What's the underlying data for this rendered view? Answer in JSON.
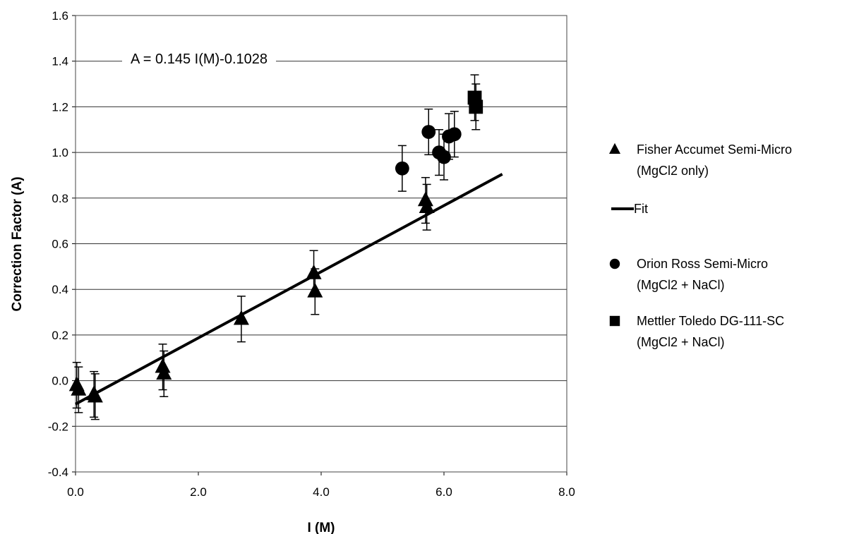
{
  "chart_data": {
    "type": "scatter",
    "title": "",
    "xlabel": "I (M)",
    "ylabel": "Correction Factor (A)",
    "xlim": [
      0,
      8
    ],
    "ylim": [
      -0.4,
      1.6
    ],
    "x_ticks": [
      "0.0",
      "2.0",
      "4.0",
      "6.0",
      "8.0"
    ],
    "y_ticks": [
      "-0.4",
      "-0.2",
      "0.0",
      "0.2",
      "0.4",
      "0.6",
      "0.8",
      "1.0",
      "1.2",
      "1.4",
      "1.6"
    ],
    "grid": "horizontal",
    "legend_position": "right",
    "annotation": "A = 0.145 I(M)-0.1028",
    "error_bar": 0.1,
    "series": [
      {
        "name": "Fisher Accumet Semi-Micro (MgCl2 only)",
        "legend_lines": [
          "Fisher Accumet Semi-Micro",
          "(MgCl2 only)"
        ],
        "marker": "triangle",
        "points": [
          {
            "x": 0.02,
            "y": -0.02
          },
          {
            "x": 0.05,
            "y": -0.04
          },
          {
            "x": 0.3,
            "y": -0.06
          },
          {
            "x": 0.32,
            "y": -0.07
          },
          {
            "x": 1.42,
            "y": 0.06
          },
          {
            "x": 1.44,
            "y": 0.03
          },
          {
            "x": 2.7,
            "y": 0.27
          },
          {
            "x": 3.88,
            "y": 0.47
          },
          {
            "x": 3.9,
            "y": 0.39
          },
          {
            "x": 5.7,
            "y": 0.79
          },
          {
            "x": 5.72,
            "y": 0.76
          }
        ]
      },
      {
        "name": "Fit",
        "legend_lines": [
          "Fit"
        ],
        "marker": "line",
        "slope": 0.145,
        "intercept": -0.1028,
        "x": [
          0,
          6.95
        ]
      },
      {
        "name": "Orion Ross Semi-Micro (MgCl2 + NaCl)",
        "legend_lines": [
          "Orion Ross Semi-Micro",
          "(MgCl2 + NaCl)"
        ],
        "marker": "circle",
        "points": [
          {
            "x": 5.32,
            "y": 0.93
          },
          {
            "x": 5.75,
            "y": 1.09
          },
          {
            "x": 5.92,
            "y": 1.0
          },
          {
            "x": 6.0,
            "y": 0.98
          },
          {
            "x": 6.08,
            "y": 1.07
          },
          {
            "x": 6.17,
            "y": 1.08
          }
        ]
      },
      {
        "name": "Mettler Toledo DG-111-SC (MgCl2 + NaCl)",
        "legend_lines": [
          "Mettler Toledo DG-111-SC",
          "(MgCl2 + NaCl)"
        ],
        "marker": "square",
        "points": [
          {
            "x": 6.5,
            "y": 1.24
          },
          {
            "x": 6.52,
            "y": 1.2
          }
        ]
      }
    ]
  }
}
